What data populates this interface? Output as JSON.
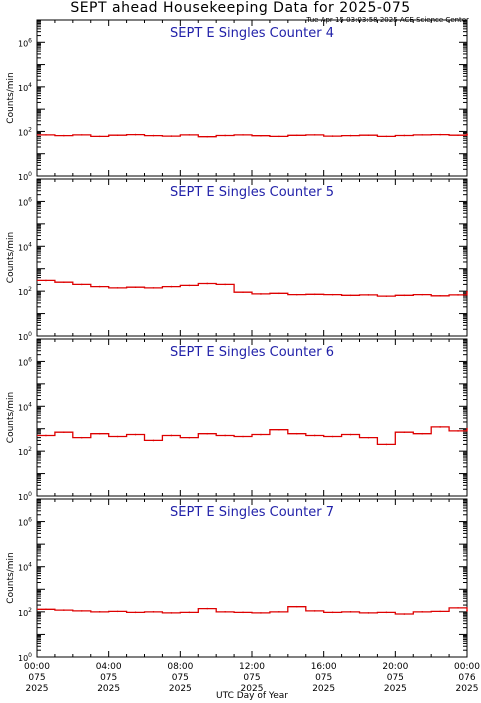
{
  "header": {
    "title": "SEPT ahead Housekeeping Data for 2025-075",
    "timestamp": "Tue Apr 15 03:03:58 2025 ACE Science Center"
  },
  "colors": {
    "trace": "#dd0000",
    "panel_title": "#1f1fa8",
    "axis": "#000000"
  },
  "chart_data": [
    {
      "type": "line",
      "title": "SEPT E Singles Counter 4",
      "ylabel": "Counts/min",
      "yscale": "log",
      "ylim": [
        1,
        10000000
      ],
      "yticks": [
        {
          "exp": "0",
          "value": 1
        },
        {
          "exp": "2",
          "value": 100
        },
        {
          "exp": "4",
          "value": 10000
        },
        {
          "exp": "6",
          "value": 1000000
        }
      ],
      "xlim": [
        0,
        24
      ],
      "x": [
        0,
        1,
        2,
        3,
        4,
        5,
        6,
        7,
        8,
        9,
        10,
        11,
        12,
        13,
        14,
        15,
        16,
        17,
        18,
        19,
        20,
        21,
        22,
        23,
        24
      ],
      "values": [
        70,
        65,
        70,
        60,
        68,
        72,
        65,
        62,
        70,
        58,
        66,
        70,
        64,
        60,
        67,
        70,
        62,
        65,
        68,
        60,
        66,
        70,
        72,
        68,
        75
      ]
    },
    {
      "type": "line",
      "title": "SEPT E Singles Counter 5",
      "ylabel": "Counts/min",
      "yscale": "log",
      "ylim": [
        1,
        10000000
      ],
      "yticks": [
        {
          "exp": "0",
          "value": 1
        },
        {
          "exp": "2",
          "value": 100
        },
        {
          "exp": "4",
          "value": 10000
        },
        {
          "exp": "6",
          "value": 1000000
        }
      ],
      "xlim": [
        0,
        24
      ],
      "x": [
        0,
        1,
        2,
        3,
        4,
        5,
        6,
        7,
        8,
        9,
        10,
        11,
        12,
        13,
        14,
        15,
        16,
        17,
        18,
        19,
        20,
        21,
        22,
        23,
        24
      ],
      "values": [
        300,
        250,
        200,
        160,
        140,
        150,
        140,
        160,
        180,
        220,
        200,
        90,
        75,
        80,
        70,
        72,
        70,
        65,
        68,
        60,
        65,
        70,
        62,
        68,
        95
      ]
    },
    {
      "type": "line",
      "title": "SEPT E Singles Counter 6",
      "ylabel": "Counts/min",
      "yscale": "log",
      "ylim": [
        1,
        10000000
      ],
      "yticks": [
        {
          "exp": "0",
          "value": 1
        },
        {
          "exp": "2",
          "value": 100
        },
        {
          "exp": "4",
          "value": 10000
        },
        {
          "exp": "6",
          "value": 1000000
        }
      ],
      "xlim": [
        0,
        24
      ],
      "x": [
        0,
        1,
        2,
        3,
        4,
        5,
        6,
        7,
        8,
        9,
        10,
        11,
        12,
        13,
        14,
        15,
        16,
        17,
        18,
        19,
        20,
        21,
        22,
        23,
        24
      ],
      "values": [
        500,
        700,
        400,
        600,
        450,
        550,
        300,
        500,
        400,
        600,
        500,
        450,
        550,
        900,
        600,
        500,
        450,
        550,
        400,
        200,
        700,
        600,
        1200,
        800,
        1000
      ]
    },
    {
      "type": "line",
      "title": "SEPT E Singles Counter 7",
      "ylabel": "Counts/min",
      "yscale": "log",
      "ylim": [
        1,
        10000000
      ],
      "yticks": [
        {
          "exp": "0",
          "value": 1
        },
        {
          "exp": "2",
          "value": 100
        },
        {
          "exp": "4",
          "value": 10000
        },
        {
          "exp": "6",
          "value": 1000000
        }
      ],
      "xlim": [
        0,
        24
      ],
      "x": [
        0,
        1,
        2,
        3,
        4,
        5,
        6,
        7,
        8,
        9,
        10,
        11,
        12,
        13,
        14,
        15,
        16,
        17,
        18,
        19,
        20,
        21,
        22,
        23,
        24
      ],
      "values": [
        130,
        120,
        110,
        100,
        105,
        95,
        100,
        90,
        95,
        140,
        100,
        95,
        90,
        100,
        170,
        110,
        95,
        100,
        90,
        95,
        80,
        100,
        105,
        150,
        110
      ]
    }
  ],
  "xaxis": {
    "xlabel": "UTC Day of Year",
    "ticks": [
      {
        "hour": 0,
        "time": "00:00",
        "doy": "075",
        "year": "2025"
      },
      {
        "hour": 4,
        "time": "04:00",
        "doy": "075",
        "year": "2025"
      },
      {
        "hour": 8,
        "time": "08:00",
        "doy": "075",
        "year": "2025"
      },
      {
        "hour": 12,
        "time": "12:00",
        "doy": "075",
        "year": "2025"
      },
      {
        "hour": 16,
        "time": "16:00",
        "doy": "075",
        "year": "2025"
      },
      {
        "hour": 20,
        "time": "20:00",
        "doy": "075",
        "year": "2025"
      },
      {
        "hour": 24,
        "time": "00:00",
        "doy": "076",
        "year": "2025"
      }
    ]
  }
}
